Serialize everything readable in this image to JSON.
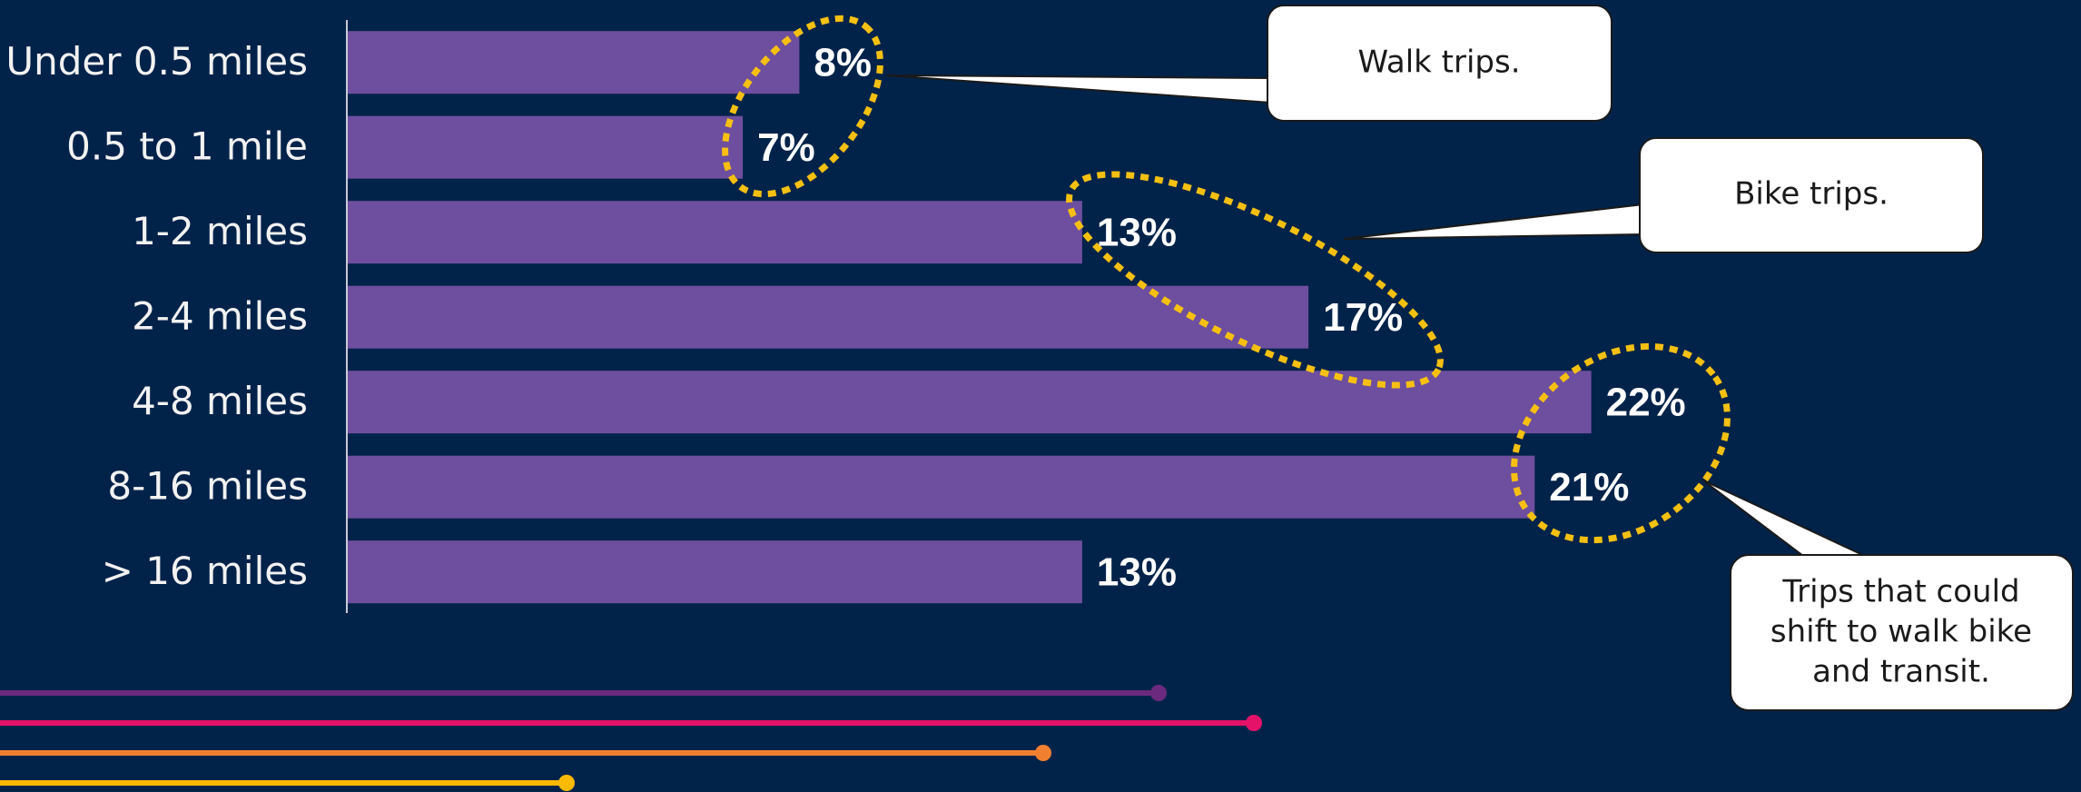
{
  "chart_data": {
    "type": "bar",
    "orientation": "horizontal",
    "categories": [
      "Under 0.5 miles",
      "0.5 to 1 mile",
      "1-2 miles",
      "2-4 miles",
      "4-8 miles",
      "8-16 miles",
      "> 16 miles"
    ],
    "values": [
      8,
      7,
      13,
      17,
      22,
      21,
      13
    ],
    "value_labels": [
      "8%",
      "7%",
      "13%",
      "17%",
      "22%",
      "21%",
      "13%"
    ],
    "color": "#6e4e9e",
    "xlim": [
      0,
      30
    ],
    "annotations": [
      {
        "lines": [
          "Walk trips."
        ]
      },
      {
        "lines": [
          "Bike trips."
        ]
      },
      {
        "lines": [
          "Trips that could",
          "shift to walk bike",
          "and transit."
        ]
      }
    ]
  }
}
